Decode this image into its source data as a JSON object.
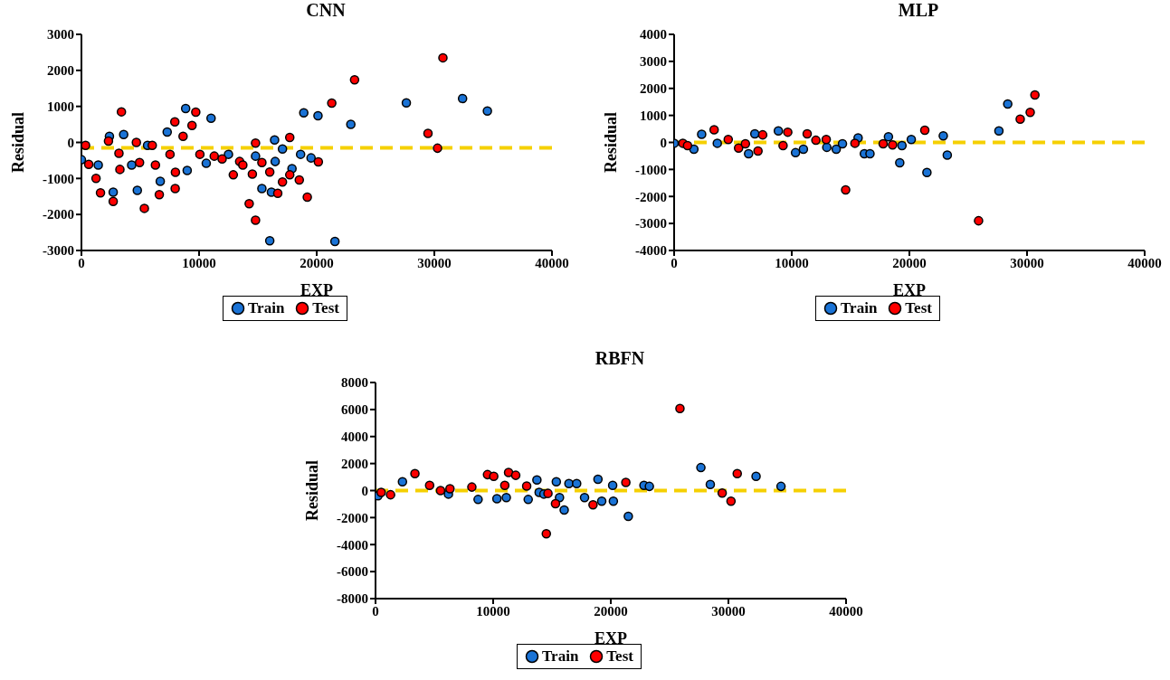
{
  "chart_data": [
    {
      "type": "scatter",
      "title": "CNN",
      "xlabel": "EXP",
      "ylabel": "Residual",
      "xlim": [
        0,
        40000
      ],
      "xticks": [
        0,
        10000,
        20000,
        30000,
        40000
      ],
      "ylim": [
        -3000,
        3000
      ],
      "yticks": [
        -3000,
        -2000,
        -1000,
        0,
        1000,
        2000,
        3000
      ],
      "legend": "bottom",
      "marker": "circle",
      "ref_lines": [
        {
          "axis": "y",
          "value": -150,
          "color": "#f5d000",
          "line_style": "dashed"
        }
      ],
      "series": [
        {
          "name": "Train",
          "color": "#1a73d6",
          "x": [
            0,
            1430,
            2380,
            2700,
            3590,
            4270,
            4750,
            5620,
            6700,
            7290,
            8860,
            8990,
            10610,
            11020,
            12500,
            14800,
            15340,
            16010,
            16150,
            16420,
            16470,
            17090,
            17900,
            18630,
            18900,
            19520,
            20110,
            21550,
            22900,
            27620,
            32400,
            34510
          ],
          "values": [
            -480,
            -630,
            170,
            -1380,
            220,
            -630,
            -1330,
            -80,
            -1080,
            290,
            940,
            -780,
            -580,
            670,
            -330,
            -380,
            -1280,
            -2730,
            -1380,
            70,
            -530,
            -180,
            -730,
            -330,
            820,
            -430,
            740,
            -2750,
            500,
            1100,
            1220,
            870
          ]
        },
        {
          "name": "Test",
          "color": "#ff0000",
          "x": [
            350,
            620,
            1240,
            1620,
            2300,
            2700,
            3190,
            3270,
            3400,
            4670,
            4940,
            5350,
            6020,
            6290,
            6620,
            7530,
            7940,
            7970,
            7990,
            8640,
            9400,
            9720,
            10070,
            11290,
            11960,
            12910,
            13450,
            13720,
            14260,
            14530,
            14800,
            14800,
            15340,
            16010,
            16690,
            17090,
            17710,
            17710,
            18520,
            19200,
            20140,
            21280,
            23220,
            29460,
            30270,
            30730
          ],
          "values": [
            -80,
            -610,
            -1000,
            -1400,
            40,
            -1640,
            -300,
            -750,
            850,
            0,
            -560,
            -1830,
            -80,
            -630,
            -1450,
            -330,
            570,
            -1280,
            -830,
            170,
            470,
            840,
            -330,
            -380,
            -460,
            -900,
            -530,
            -630,
            -1700,
            -880,
            -20,
            -2160,
            -560,
            -820,
            -1410,
            -1100,
            -900,
            140,
            -1040,
            -1520,
            -540,
            1090,
            1740,
            250,
            -160,
            2350
          ]
        }
      ]
    },
    {
      "type": "scatter",
      "title": "MLP",
      "xlabel": "EXP",
      "ylabel": "Residual",
      "xlim": [
        0,
        40000
      ],
      "xticks": [
        0,
        10000,
        20000,
        30000,
        40000
      ],
      "ylim": [
        -4000,
        4000
      ],
      "yticks": [
        -4000,
        -3000,
        -2000,
        -1000,
        0,
        1000,
        2000,
        3000,
        4000
      ],
      "legend": "bottom",
      "marker": "circle",
      "ref_lines": [
        {
          "axis": "y",
          "value": 0,
          "color": "#f5d000",
          "line_style": "dashed"
        }
      ],
      "series": [
        {
          "name": "Train",
          "color": "#1a73d6",
          "x": [
            0,
            1680,
            2340,
            3670,
            6330,
            6860,
            8860,
            10320,
            10990,
            12980,
            13780,
            14310,
            15640,
            16170,
            16650,
            18220,
            19180,
            19370,
            20160,
            21490,
            22880,
            23220,
            27610,
            28360
          ],
          "values": [
            -30,
            -250,
            300,
            -30,
            -420,
            320,
            430,
            -380,
            -250,
            -180,
            -250,
            -50,
            170,
            -420,
            -420,
            210,
            -750,
            -120,
            110,
            -1110,
            240,
            -470,
            430,
            1420
          ]
        },
        {
          "name": "Test",
          "color": "#ff0000",
          "x": [
            740,
            1140,
            3400,
            4600,
            5480,
            6060,
            7130,
            7530,
            9260,
            9660,
            11310,
            12050,
            12930,
            14580,
            15370,
            17770,
            18570,
            21310,
            25880,
            29420,
            30270,
            30670
          ],
          "values": [
            -30,
            -120,
            470,
            110,
            -210,
            -50,
            -320,
            280,
            -120,
            380,
            320,
            80,
            110,
            -1760,
            -30,
            -50,
            -90,
            450,
            -2900,
            860,
            1110,
            1760
          ]
        }
      ]
    },
    {
      "type": "scatter",
      "title": "RBFN",
      "xlabel": "EXP",
      "ylabel": "Residual",
      "xlim": [
        0,
        40000
      ],
      "xticks": [
        0,
        10000,
        20000,
        30000,
        40000
      ],
      "ylim": [
        -8000,
        8000
      ],
      "yticks": [
        -8000,
        -6000,
        -4000,
        -2000,
        0,
        2000,
        4000,
        6000,
        8000
      ],
      "legend": "bottom",
      "marker": "circle",
      "ref_lines": [
        {
          "axis": "y",
          "value": 0,
          "color": "#f5d000",
          "line_style": "dashed"
        }
      ],
      "series": [
        {
          "name": "Train",
          "color": "#1a73d6",
          "x": [
            210,
            2290,
            6200,
            8720,
            10320,
            11120,
            12980,
            13720,
            13910,
            14310,
            15370,
            15640,
            16040,
            16440,
            17100,
            17770,
            18910,
            19230,
            20160,
            20220,
            21490,
            22820,
            23280,
            27660,
            28460,
            32350,
            34470
          ],
          "values": [
            -390,
            650,
            -260,
            -660,
            -600,
            -520,
            -660,
            790,
            -130,
            -260,
            650,
            -520,
            -1440,
            520,
            520,
            -520,
            840,
            -790,
            390,
            -790,
            -1910,
            390,
            310,
            1700,
            450,
            1050,
            310
          ]
        },
        {
          "name": "Test",
          "color": "#ff0000",
          "x": [
            480,
            1280,
            3350,
            4600,
            5530,
            6330,
            8190,
            9520,
            10050,
            10990,
            11310,
            11920,
            12850,
            14520,
            14660,
            15300,
            18490,
            21280,
            25880,
            29470,
            30220,
            30750
          ],
          "values": [
            -130,
            -310,
            1260,
            390,
            0,
            130,
            260,
            1180,
            1050,
            390,
            1340,
            1130,
            340,
            -3200,
            -210,
            -970,
            -1050,
            600,
            6080,
            -180,
            -790,
            1260
          ]
        }
      ]
    }
  ]
}
